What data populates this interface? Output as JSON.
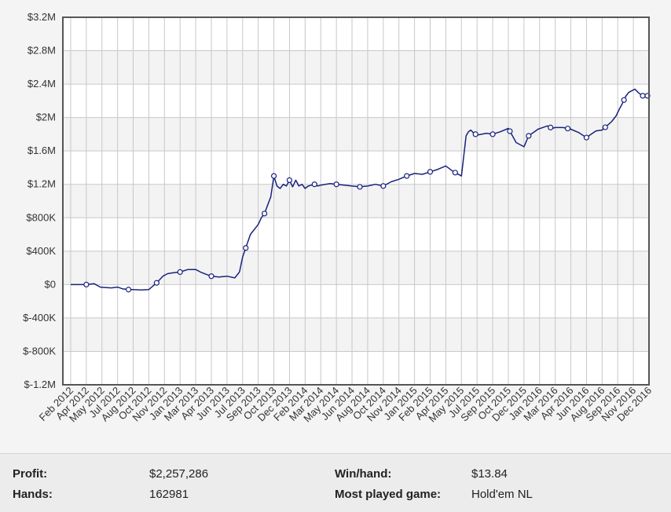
{
  "chart_data": {
    "type": "line",
    "y_ticks": [
      "$3.2M",
      "$2.8M",
      "$2.4M",
      "$2M",
      "$1.6M",
      "$1.2M",
      "$800K",
      "$400K",
      "$0",
      "$-400K",
      "$-800K",
      "$-1.2M"
    ],
    "y_tick_values": [
      3200000,
      2800000,
      2400000,
      2000000,
      1600000,
      1200000,
      800000,
      400000,
      0,
      -400000,
      -800000,
      -1200000
    ],
    "ylim": [
      -1200000,
      3200000
    ],
    "x_ticks": [
      "Feb 2012",
      "Apr 2012",
      "May 2012",
      "Jul 2012",
      "Aug 2012",
      "Oct 2012",
      "Nov 2012",
      "Jan 2013",
      "Mar 2013",
      "Apr 2013",
      "Jun 2013",
      "Jul 2013",
      "Sep 2013",
      "Oct 2013",
      "Dec 2013",
      "Feb 2014",
      "Mar 2014",
      "May 2014",
      "Jun 2014",
      "Aug 2014",
      "Oct 2014",
      "Nov 2014",
      "Jan 2015",
      "Feb 2015",
      "Apr 2015",
      "May 2015",
      "Jul 2015",
      "Sep 2015",
      "Oct 2015",
      "Dec 2015",
      "Jan 2016",
      "Mar 2016",
      "Apr 2016",
      "Jun 2016",
      "Aug 2016",
      "Sep 2016",
      "Nov 2016",
      "Dec 2016"
    ],
    "grid": true,
    "series": [
      {
        "color": "#1a237e",
        "x": [
          0,
          1,
          1.5,
          1.9,
          2.2,
          2.6,
          3.0,
          3.3,
          3.7,
          4.0,
          4.5,
          5.0,
          5.5,
          5.9,
          6.2,
          6.5,
          7.0,
          7.5,
          8.0,
          8.3,
          8.7,
          9.0,
          9.5,
          10.0,
          10.5,
          10.8,
          11.0,
          11.5,
          12.0,
          12.2,
          12.4,
          12.6,
          12.8,
          13.0,
          13.2,
          13.4,
          13.6,
          13.8,
          14.0,
          14.2,
          14.4,
          14.6,
          14.8,
          15.0,
          15.2,
          15.4,
          15.6,
          15.8,
          16.0,
          16.3,
          16.6,
          17.0,
          17.5,
          18.0,
          18.5,
          19.0,
          19.5,
          20.0,
          20.5,
          21.0,
          21.5,
          22.0,
          22.5,
          23.0,
          23.5,
          24.0,
          24.5,
          25.0,
          25.3,
          25.45,
          25.6,
          25.8,
          26.0,
          26.3,
          26.6,
          27.0,
          27.5,
          28.0,
          28.5,
          29.0,
          29.3,
          29.6,
          29.9,
          30.2,
          30.5,
          30.8,
          31.0,
          31.5,
          32.0,
          32.5,
          33.0,
          33.3,
          33.6,
          34.0,
          34.3,
          34.6,
          34.9,
          35.1,
          35.3,
          35.5,
          35.7,
          35.9,
          36.1,
          36.3,
          36.5,
          36.7,
          36.9
        ],
        "values": [
          0,
          0,
          10000,
          -30000,
          -35000,
          -40000,
          -30000,
          -50000,
          -60000,
          -60000,
          -65000,
          -60000,
          20000,
          100000,
          130000,
          140000,
          150000,
          180000,
          180000,
          150000,
          120000,
          100000,
          90000,
          100000,
          80000,
          150000,
          330000,
          600000,
          720000,
          800000,
          850000,
          950000,
          1050000,
          1300000,
          1180000,
          1150000,
          1200000,
          1180000,
          1250000,
          1170000,
          1250000,
          1180000,
          1200000,
          1150000,
          1180000,
          1190000,
          1200000,
          1180000,
          1190000,
          1200000,
          1210000,
          1200000,
          1190000,
          1180000,
          1170000,
          1180000,
          1200000,
          1180000,
          1230000,
          1260000,
          1300000,
          1330000,
          1320000,
          1350000,
          1380000,
          1420000,
          1350000,
          1300000,
          1780000,
          1830000,
          1850000,
          1810000,
          1790000,
          1800000,
          1810000,
          1800000,
          1830000,
          1870000,
          1700000,
          1650000,
          1780000,
          1820000,
          1860000,
          1880000,
          1900000,
          1870000,
          1880000,
          1880000,
          1860000,
          1820000,
          1760000,
          1800000,
          1840000,
          1850000,
          1900000,
          1950000,
          2020000,
          2100000,
          2170000,
          2250000,
          2300000,
          2320000,
          2340000,
          2300000,
          2270000,
          2250000,
          2260000
        ],
        "markers": [
          1,
          3.7,
          5.5,
          7.0,
          9.0,
          11.2,
          12.4,
          13.0,
          14.0,
          15.6,
          17.0,
          18.5,
          20.0,
          21.5,
          23.0,
          24.6,
          25.9,
          27.0,
          28.1,
          29.3,
          30.7,
          31.8,
          33.0,
          34.2,
          35.4,
          36.6,
          36.9
        ]
      }
    ]
  },
  "stats": {
    "profit_label": "Profit:",
    "profit_value": "$2,257,286",
    "hands_label": "Hands:",
    "hands_value": "162981",
    "winhand_label": "Win/hand:",
    "winhand_value": "$13.84",
    "game_label": "Most played game:",
    "game_value": "Hold'em NL"
  }
}
